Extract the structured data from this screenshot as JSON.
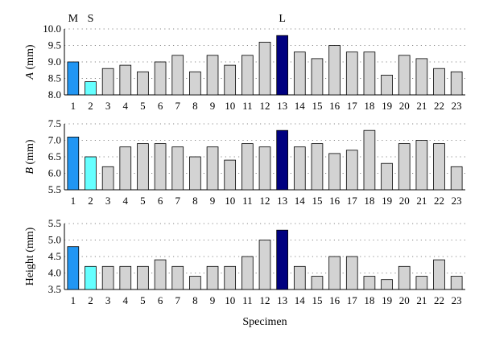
{
  "chart_data": {
    "type": "bar",
    "categories": [
      "1",
      "2",
      "3",
      "4",
      "5",
      "6",
      "7",
      "8",
      "9",
      "10",
      "11",
      "12",
      "13",
      "14",
      "15",
      "16",
      "17",
      "18",
      "19",
      "20",
      "21",
      "22",
      "23"
    ],
    "xlabel": "Specimen",
    "top_labels": [
      {
        "category": "1",
        "text": "M"
      },
      {
        "category": "2",
        "text": "S"
      },
      {
        "category": "13",
        "text": "L"
      }
    ],
    "colors": {
      "default": "#d3d3d3",
      "specimen_1": "#2196f3",
      "specimen_2": "#66ffff",
      "specimen_13": "#000080",
      "edge": "#000000",
      "grid": "#888888"
    },
    "grid": "dotted horizontal",
    "panels": [
      {
        "name": "A",
        "ylabel": "A (mm)",
        "ylim": [
          8.0,
          10.0
        ],
        "yticks": [
          "8.0",
          "8.5",
          "9.0",
          "9.5",
          "10.0"
        ],
        "values": [
          9.0,
          8.4,
          8.8,
          8.9,
          8.7,
          9.0,
          9.2,
          8.7,
          9.2,
          8.9,
          9.2,
          9.6,
          9.8,
          9.3,
          9.1,
          9.5,
          9.3,
          9.3,
          8.6,
          9.2,
          9.1,
          8.8,
          8.7
        ]
      },
      {
        "name": "B",
        "ylabel": "B (mm)",
        "ylim": [
          5.5,
          7.5
        ],
        "yticks": [
          "5.5",
          "6.0",
          "6.5",
          "7.0",
          "7.5"
        ],
        "values": [
          7.1,
          6.5,
          6.2,
          6.8,
          6.9,
          6.9,
          6.8,
          6.5,
          6.8,
          6.4,
          6.9,
          6.8,
          7.3,
          6.8,
          6.9,
          6.6,
          6.7,
          7.3,
          6.3,
          6.9,
          7.0,
          6.9,
          6.2
        ]
      },
      {
        "name": "Height",
        "ylabel": "Height (mm)",
        "ylim": [
          3.5,
          5.5
        ],
        "yticks": [
          "3.5",
          "4.0",
          "4.5",
          "5.0",
          "5.5"
        ],
        "values": [
          4.8,
          4.2,
          4.2,
          4.2,
          4.2,
          4.4,
          4.2,
          3.9,
          4.2,
          4.2,
          4.5,
          5.0,
          5.3,
          4.2,
          3.9,
          4.5,
          4.5,
          3.9,
          3.8,
          4.2,
          3.9,
          4.4,
          3.9
        ]
      }
    ]
  }
}
